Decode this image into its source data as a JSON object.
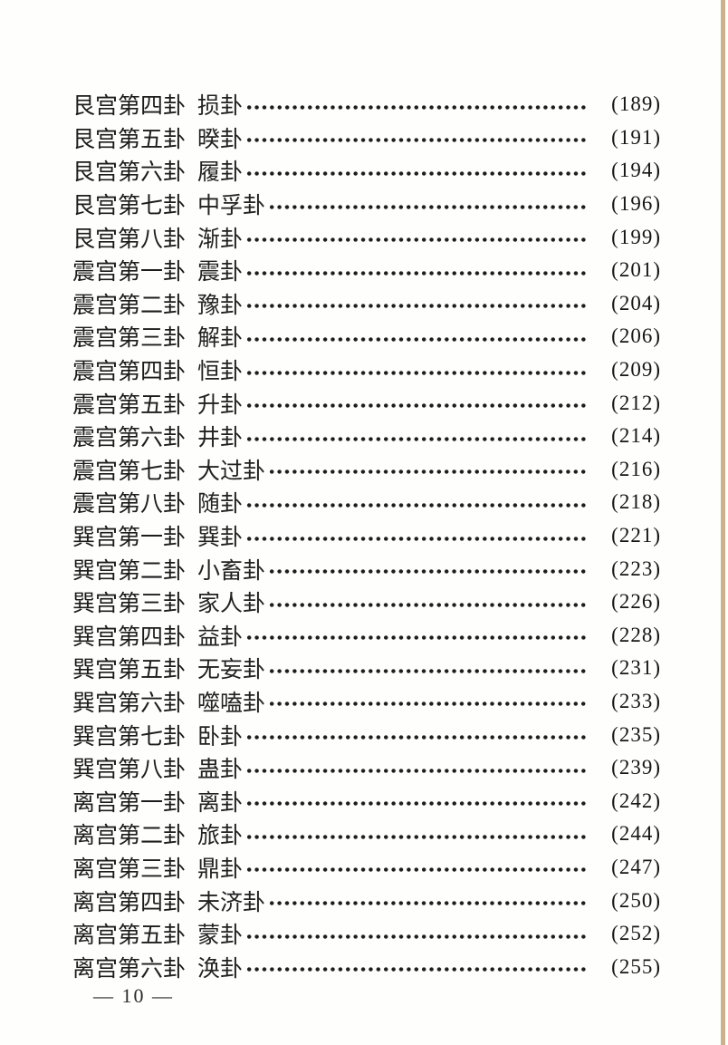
{
  "page": {
    "footer": "— 10 —",
    "edge_color": "#cbb28a",
    "text_color": "#1f1f1f"
  },
  "toc": {
    "entries": [
      {
        "palace": "艮宫第四卦",
        "hexagram": "损卦",
        "page": "(189)"
      },
      {
        "palace": "艮宫第五卦",
        "hexagram": "暌卦",
        "page": "(191)"
      },
      {
        "palace": "艮宫第六卦",
        "hexagram": "履卦",
        "page": "(194)"
      },
      {
        "palace": "艮宫第七卦",
        "hexagram": "中孚卦",
        "page": "(196)"
      },
      {
        "palace": "艮宫第八卦",
        "hexagram": "渐卦",
        "page": "(199)"
      },
      {
        "palace": "震宫第一卦",
        "hexagram": "震卦",
        "page": "(201)"
      },
      {
        "palace": "震宫第二卦",
        "hexagram": "豫卦",
        "page": "(204)"
      },
      {
        "palace": "震宫第三卦",
        "hexagram": "解卦",
        "page": "(206)"
      },
      {
        "palace": "震宫第四卦",
        "hexagram": "恒卦",
        "page": "(209)"
      },
      {
        "palace": "震宫第五卦",
        "hexagram": "升卦",
        "page": "(212)"
      },
      {
        "palace": "震宫第六卦",
        "hexagram": "井卦",
        "page": "(214)"
      },
      {
        "palace": "震宫第七卦",
        "hexagram": "大过卦",
        "page": "(216)"
      },
      {
        "palace": "震宫第八卦",
        "hexagram": "随卦",
        "page": "(218)"
      },
      {
        "palace": "巽宫第一卦",
        "hexagram": "巽卦",
        "page": "(221)"
      },
      {
        "palace": "巽宫第二卦",
        "hexagram": "小畜卦",
        "page": "(223)"
      },
      {
        "palace": "巽宫第三卦",
        "hexagram": "家人卦",
        "page": "(226)"
      },
      {
        "palace": "巽宫第四卦",
        "hexagram": "益卦",
        "page": "(228)"
      },
      {
        "palace": "巽宫第五卦",
        "hexagram": "无妄卦",
        "page": "(231)"
      },
      {
        "palace": "巽宫第六卦",
        "hexagram": "噬嗑卦",
        "page": "(233)"
      },
      {
        "palace": "巽宫第七卦",
        "hexagram": "卧卦",
        "page": "(235)"
      },
      {
        "palace": "巽宫第八卦",
        "hexagram": "蛊卦",
        "page": "(239)"
      },
      {
        "palace": "离宫第一卦",
        "hexagram": "离卦",
        "page": "(242)"
      },
      {
        "palace": "离宫第二卦",
        "hexagram": "旅卦",
        "page": "(244)"
      },
      {
        "palace": "离宫第三卦",
        "hexagram": "鼎卦",
        "page": "(247)"
      },
      {
        "palace": "离宫第四卦",
        "hexagram": "未济卦",
        "page": "(250)"
      },
      {
        "palace": "离宫第五卦",
        "hexagram": "蒙卦",
        "page": "(252)"
      },
      {
        "palace": "离宫第六卦",
        "hexagram": "涣卦",
        "page": "(255)"
      }
    ]
  }
}
